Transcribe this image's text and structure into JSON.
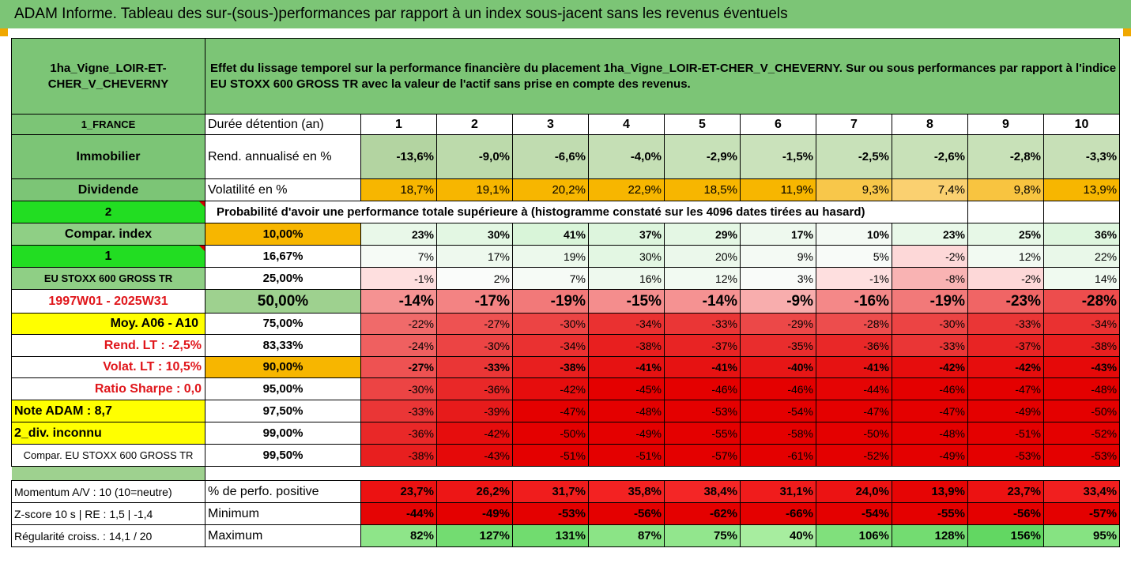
{
  "window": {
    "title": "ADAM Informe. Tableau des sur-(sous-)performances par rapport à un index sous-jacent sans les revenus éventuels"
  },
  "header": {
    "asset_name": "1ha_Vigne_LOIR-ET-CHER_V_CHEVERNY",
    "description": "Effet du lissage temporel sur la performance financière du placement 1ha_Vigne_LOIR-ET-CHER_V_CHEVERNY. Sur ou sous performances par rapport à l'indice EU STOXX 600 GROSS TR avec la valeur de l'actif sans prise en compte des revenus."
  },
  "years": [
    "1",
    "2",
    "3",
    "4",
    "5",
    "6",
    "7",
    "8",
    "9",
    "10"
  ],
  "info_rows": {
    "duration": {
      "left": "1_FRANCE",
      "label": "Durée détention (an)"
    },
    "rend": {
      "left": "Immobilier",
      "label": "Rend. annualisé en %",
      "values": [
        "-13,6%",
        "-9,0%",
        "-6,6%",
        "-4,0%",
        "-2,9%",
        "-1,5%",
        "-2,5%",
        "-2,6%",
        "-2,8%",
        "-3,3%"
      ]
    },
    "vol": {
      "left": "Dividende",
      "label": "Volatilité en %",
      "values": [
        "18,7%",
        "19,1%",
        "20,2%",
        "22,9%",
        "18,5%",
        "11,9%",
        "9,3%",
        "7,4%",
        "9,8%",
        "13,9%"
      ]
    },
    "prob_header": {
      "left": "2",
      "text": "Probabilité d'avoir une performance totale supérieure à (histogramme constaté sur les 4096 dates tirées au hasard)"
    }
  },
  "quantile_rows": [
    {
      "left": "Compar. index",
      "pct": "10,00%",
      "values": [
        "23%",
        "30%",
        "41%",
        "37%",
        "29%",
        "17%",
        "10%",
        "23%",
        "25%",
        "36%"
      ]
    },
    {
      "left": "1",
      "pct": "16,67%",
      "values": [
        "7%",
        "17%",
        "19%",
        "30%",
        "20%",
        "9%",
        "5%",
        "-2%",
        "12%",
        "22%"
      ]
    },
    {
      "left": "EU STOXX 600 GROSS TR",
      "pct": "25,00%",
      "values": [
        "-1%",
        "2%",
        "7%",
        "16%",
        "12%",
        "3%",
        "-1%",
        "-8%",
        "-2%",
        "14%"
      ]
    },
    {
      "left": "1997W01 - 2025W31",
      "pct": "50,00%",
      "values": [
        "-14%",
        "-17%",
        "-19%",
        "-15%",
        "-14%",
        "-9%",
        "-16%",
        "-19%",
        "-23%",
        "-28%"
      ]
    },
    {
      "left": "Moy. A06 - A10",
      "pct": "75,00%",
      "values": [
        "-22%",
        "-27%",
        "-30%",
        "-34%",
        "-33%",
        "-29%",
        "-28%",
        "-30%",
        "-33%",
        "-34%"
      ]
    },
    {
      "left": "Rend. LT :   -2,5%",
      "pct": "83,33%",
      "values": [
        "-24%",
        "-30%",
        "-34%",
        "-38%",
        "-37%",
        "-35%",
        "-36%",
        "-33%",
        "-37%",
        "-38%"
      ]
    },
    {
      "left": "Volat. LT :   10,5%",
      "pct": "90,00%",
      "values": [
        "-27%",
        "-33%",
        "-38%",
        "-41%",
        "-41%",
        "-40%",
        "-41%",
        "-42%",
        "-42%",
        "-43%"
      ]
    },
    {
      "left": "Ratio Sharpe :   0,0",
      "pct": "95,00%",
      "values": [
        "-30%",
        "-36%",
        "-42%",
        "-45%",
        "-46%",
        "-46%",
        "-44%",
        "-46%",
        "-47%",
        "-48%"
      ]
    },
    {
      "left": "Note ADAM : 8,7",
      "pct": "97,50%",
      "values": [
        "-33%",
        "-39%",
        "-47%",
        "-48%",
        "-53%",
        "-54%",
        "-47%",
        "-47%",
        "-49%",
        "-50%"
      ]
    },
    {
      "left": "2_div. inconnu",
      "pct": "99,00%",
      "values": [
        "-36%",
        "-42%",
        "-50%",
        "-49%",
        "-55%",
        "-58%",
        "-50%",
        "-48%",
        "-51%",
        "-52%"
      ]
    },
    {
      "left": "Compar. EU STOXX 600 GROSS TR",
      "pct": "99,50%",
      "values": [
        "-38%",
        "-43%",
        "-51%",
        "-51%",
        "-57%",
        "-61%",
        "-52%",
        "-49%",
        "-53%",
        "-53%"
      ]
    }
  ],
  "summary_rows": [
    {
      "left": "Momentum A/V : 10 (10=neutre)",
      "label": "% de perfo. positive",
      "values": [
        "23,7%",
        "26,2%",
        "31,7%",
        "35,8%",
        "38,4%",
        "31,1%",
        "24,0%",
        "13,9%",
        "23,7%",
        "33,4%"
      ]
    },
    {
      "left": "Z-score 10 s  |  RE : 1,5  |  -1,4",
      "label": "Minimum",
      "values": [
        "-44%",
        "-49%",
        "-53%",
        "-56%",
        "-62%",
        "-66%",
        "-54%",
        "-55%",
        "-56%",
        "-57%"
      ]
    },
    {
      "left": "Régularité croiss. : 14,1 / 20",
      "label": "Maximum",
      "values": [
        "82%",
        "127%",
        "131%",
        "87%",
        "75%",
        "40%",
        "106%",
        "128%",
        "156%",
        "95%"
      ]
    }
  ],
  "colors": {
    "header_green": "#7cc576",
    "highlight_yellow": "#ffff00",
    "highlight_orange": "#f7b600",
    "negative_red": "#e60000",
    "positive_green": "#63d063"
  }
}
